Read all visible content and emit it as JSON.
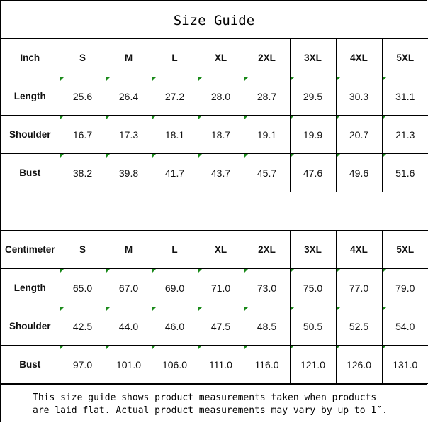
{
  "title": "Size Guide",
  "sizes": [
    "S",
    "M",
    "L",
    "XL",
    "2XL",
    "3XL",
    "4XL",
    "5XL"
  ],
  "tables": [
    {
      "unit": "Inch",
      "rows": [
        {
          "label": "Length",
          "values": [
            "25.6",
            "26.4",
            "27.2",
            "28.0",
            "28.7",
            "29.5",
            "30.3",
            "31.1"
          ]
        },
        {
          "label": "Shoulder",
          "values": [
            "16.7",
            "17.3",
            "18.1",
            "18.7",
            "19.1",
            "19.9",
            "20.7",
            "21.3"
          ]
        },
        {
          "label": "Bust",
          "values": [
            "38.2",
            "39.8",
            "41.7",
            "43.7",
            "45.7",
            "47.6",
            "49.6",
            "51.6"
          ]
        }
      ]
    },
    {
      "unit": "Centimeter",
      "rows": [
        {
          "label": "Length",
          "values": [
            "65.0",
            "67.0",
            "69.0",
            "71.0",
            "73.0",
            "75.0",
            "77.0",
            "79.0"
          ]
        },
        {
          "label": "Shoulder",
          "values": [
            "42.5",
            "44.0",
            "46.0",
            "47.5",
            "48.5",
            "50.5",
            "52.5",
            "54.0"
          ]
        },
        {
          "label": "Bust",
          "values": [
            "97.0",
            "101.0",
            "106.0",
            "111.0",
            "116.0",
            "121.0",
            "126.0",
            "131.0"
          ]
        }
      ]
    }
  ],
  "note": {
    "line1": "This size guide shows product measurements taken when products",
    "line2": "are laid flat. Actual product measurements may vary by up to 1″."
  },
  "colors": {
    "cell_marker": "#1a8a1a"
  }
}
